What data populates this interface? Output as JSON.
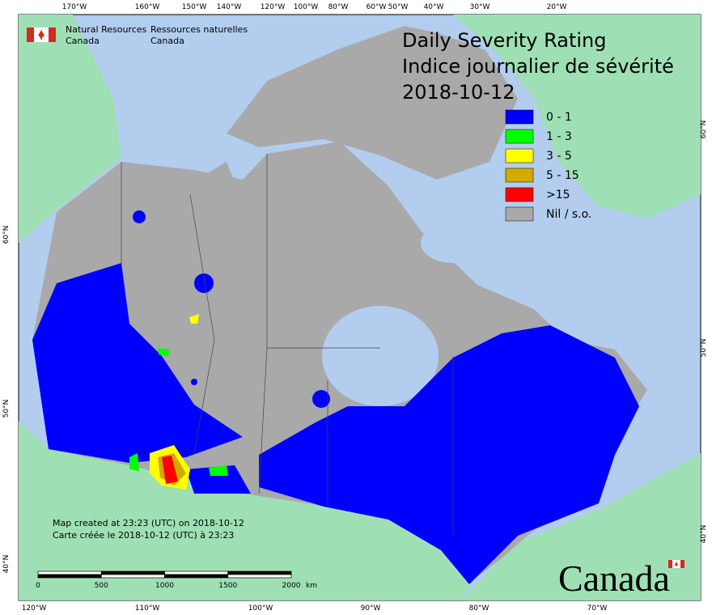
{
  "agency": {
    "en": [
      "Natural Resources",
      "Canada"
    ],
    "fr": [
      "Ressources naturelles",
      "Canada"
    ]
  },
  "title": [
    "Daily Severity Rating",
    "Indice journalier de sévérité",
    "2018-10-12"
  ],
  "legend": [
    {
      "label": "0 - 1",
      "color": "#0000ff"
    },
    {
      "label": "1 - 3",
      "color": "#00ff00"
    },
    {
      "label": "3 - 5",
      "color": "#ffff00"
    },
    {
      "label": "5 - 15",
      "color": "#d4aa00"
    },
    {
      "label": ">15",
      "color": "#ff0000"
    },
    {
      "label": "Nil / s.o.",
      "color": "#a9a9a9"
    }
  ],
  "top_labels": [
    "170°W",
    "160°W",
    "150°W",
    "140°W",
    "120°W",
    "100°W",
    "80°W",
    "60°W",
    "50°W",
    "40°W",
    "30°W",
    "20°W"
  ],
  "bottom_labels": [
    "120°W",
    "110°W",
    "100°W",
    "90°W",
    "80°W",
    "70°W"
  ],
  "left_labels": [
    "60°N",
    "50°N",
    "40°N"
  ],
  "right_labels": [
    "60°N",
    "50°N",
    "40°N"
  ],
  "credits": [
    "Map created at 23:23 (UTC) on 2018-10-12",
    "Carte créée le 2018-10-12 (UTC) à 23:23"
  ],
  "scale": {
    "ticks": [
      "0",
      "500",
      "1000",
      "1500",
      "2000"
    ],
    "unit": "km"
  },
  "wordmark": "Canada"
}
